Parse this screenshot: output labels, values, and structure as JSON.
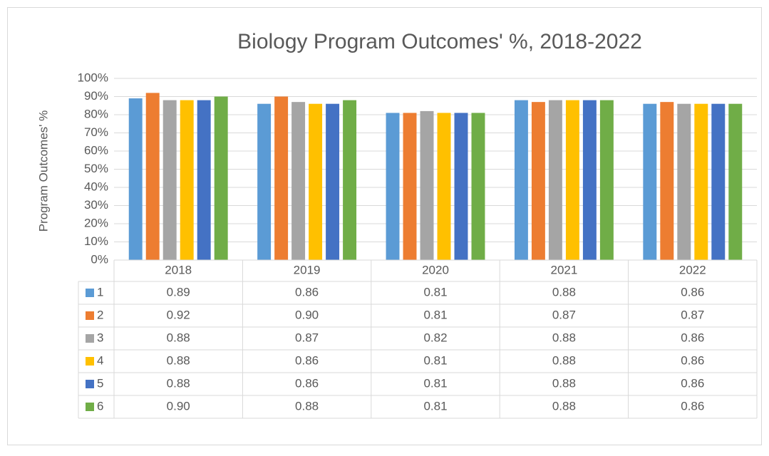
{
  "chart_data": {
    "type": "bar",
    "title": "Biology Program Outcomes' %, 2018-2022",
    "y_label": "Program Outcomes' %",
    "categories": [
      "2018",
      "2019",
      "2020",
      "2021",
      "2022"
    ],
    "ylim": [
      0,
      100
    ],
    "yticks": [
      {
        "value": 0,
        "label": "0%"
      },
      {
        "value": 10,
        "label": "10%"
      },
      {
        "value": 20,
        "label": "20%"
      },
      {
        "value": 30,
        "label": "30%"
      },
      {
        "value": 40,
        "label": "40%"
      },
      {
        "value": 50,
        "label": "50%"
      },
      {
        "value": 60,
        "label": "60%"
      },
      {
        "value": 70,
        "label": "70%"
      },
      {
        "value": 80,
        "label": "80%"
      },
      {
        "value": 90,
        "label": "90%"
      },
      {
        "value": 100,
        "label": "100%"
      }
    ],
    "grid": true,
    "series": [
      {
        "name": "1",
        "color": "#5b9bd5",
        "values": [
          89,
          86,
          81,
          88,
          86
        ],
        "value_labels": [
          "0.89",
          "0.86",
          "0.81",
          "0.88",
          "0.86"
        ]
      },
      {
        "name": "2",
        "color": "#ed7d31",
        "values": [
          92,
          90,
          81,
          87,
          87
        ],
        "value_labels": [
          "0.92",
          "0.90",
          "0.81",
          "0.87",
          "0.87"
        ]
      },
      {
        "name": "3",
        "color": "#a5a5a5",
        "values": [
          88,
          87,
          82,
          88,
          86
        ],
        "value_labels": [
          "0.88",
          "0.87",
          "0.82",
          "0.88",
          "0.86"
        ]
      },
      {
        "name": "4",
        "color": "#ffc000",
        "values": [
          88,
          86,
          81,
          88,
          86
        ],
        "value_labels": [
          "0.88",
          "0.86",
          "0.81",
          "0.88",
          "0.86"
        ]
      },
      {
        "name": "5",
        "color": "#4472c4",
        "values": [
          88,
          86,
          81,
          88,
          86
        ],
        "value_labels": [
          "0.88",
          "0.86",
          "0.81",
          "0.88",
          "0.86"
        ]
      },
      {
        "name": "6",
        "color": "#70ad47",
        "values": [
          90,
          88,
          81,
          88,
          86
        ],
        "value_labels": [
          "0.90",
          "0.88",
          "0.81",
          "0.88",
          "0.86"
        ]
      }
    ]
  }
}
